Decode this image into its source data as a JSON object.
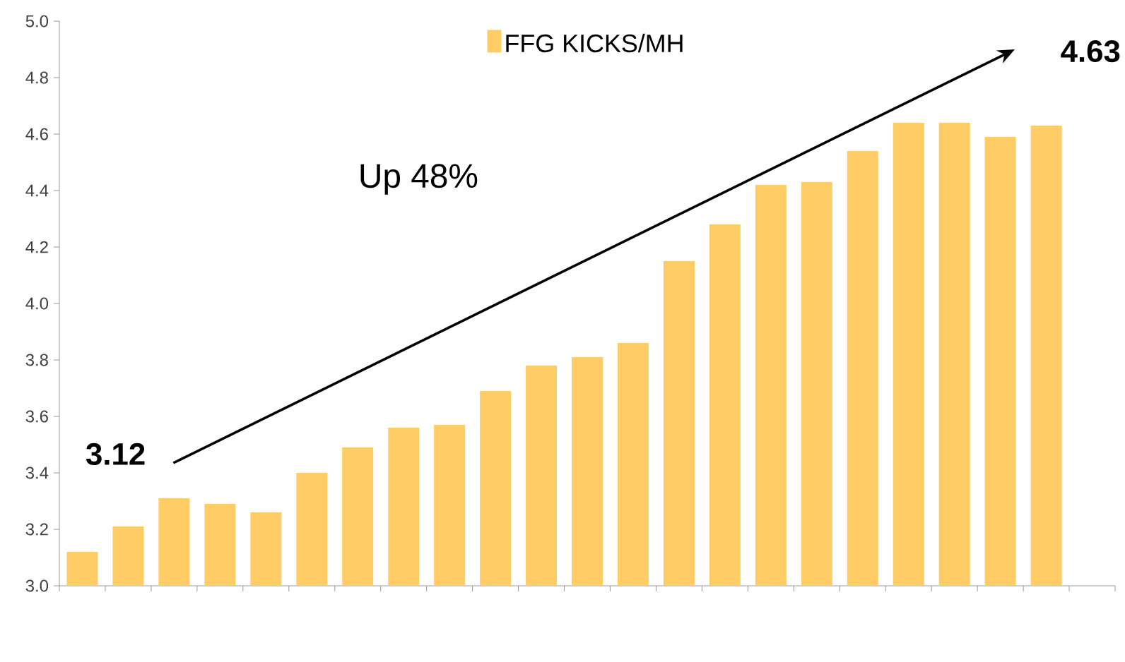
{
  "chart_data": {
    "type": "bar",
    "categories": [
      null,
      null,
      null,
      null,
      null,
      null,
      null,
      null,
      null,
      null,
      null,
      null,
      null,
      null,
      null,
      null,
      null,
      null,
      null,
      null,
      null,
      null,
      null
    ],
    "series": [
      {
        "name": "FFG KICKS/MH",
        "color": "#ffcc66",
        "values": [
          3.12,
          3.21,
          3.31,
          3.29,
          3.26,
          3.4,
          3.49,
          3.56,
          3.57,
          3.69,
          3.78,
          3.81,
          3.86,
          4.15,
          4.28,
          4.42,
          4.43,
          4.54,
          4.64,
          4.64,
          4.59,
          4.63,
          null
        ]
      }
    ],
    "ylim": [
      3.0,
      5.0
    ],
    "yticks": [
      {
        "value": 3.0,
        "label": "3.0"
      },
      {
        "value": 3.2,
        "label": "3.2"
      },
      {
        "value": 3.4,
        "label": "3.4"
      },
      {
        "value": 3.6,
        "label": "3.6"
      },
      {
        "value": 3.8,
        "label": "3.8"
      },
      {
        "value": 4.0,
        "label": "4.0"
      },
      {
        "value": 4.2,
        "label": "4.2"
      },
      {
        "value": 4.4,
        "label": "4.4"
      },
      {
        "value": 4.6,
        "label": "4.6"
      },
      {
        "value": 4.8,
        "label": "4.8"
      },
      {
        "value": 5.0,
        "label": "5.0"
      }
    ],
    "annotations": [
      "3.12",
      "4.63",
      "Up 48%"
    ],
    "legend": "top",
    "tick_labels": "y"
  }
}
